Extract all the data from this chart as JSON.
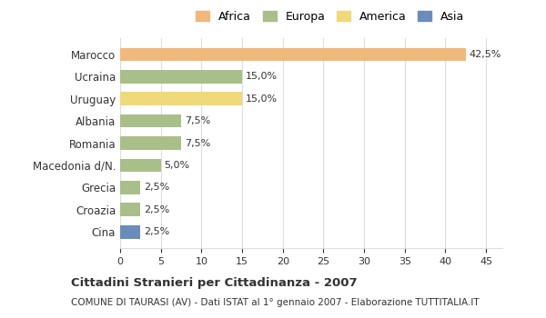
{
  "categories": [
    "Cina",
    "Croazia",
    "Grecia",
    "Macedonia d/N.",
    "Romania",
    "Albania",
    "Uruguay",
    "Ucraina",
    "Marocco"
  ],
  "values": [
    2.5,
    2.5,
    2.5,
    5.0,
    7.5,
    7.5,
    15.0,
    15.0,
    42.5
  ],
  "bar_colors": [
    "#6b8cba",
    "#a8bf8a",
    "#a8bf8a",
    "#a8bf8a",
    "#a8bf8a",
    "#a8bf8a",
    "#f0d97a",
    "#a8bf8a",
    "#f0b87a"
  ],
  "labels": [
    "2,5%",
    "2,5%",
    "2,5%",
    "5,0%",
    "7,5%",
    "7,5%",
    "15,0%",
    "15,0%",
    "42,5%"
  ],
  "xlim": [
    0,
    47
  ],
  "xticks": [
    0,
    5,
    10,
    15,
    20,
    25,
    30,
    35,
    40,
    45
  ],
  "title": "Cittadini Stranieri per Cittadinanza - 2007",
  "subtitle": "COMUNE DI TAURASI (AV) - Dati ISTAT al 1° gennaio 2007 - Elaborazione TUTTITALIA.IT",
  "legend_labels": [
    "Africa",
    "Europa",
    "America",
    "Asia"
  ],
  "legend_colors": [
    "#f0b87a",
    "#a8bf8a",
    "#f0d97a",
    "#6b8cba"
  ],
  "background_color": "#ffffff",
  "bar_height": 0.6,
  "grid_color": "#dddddd",
  "text_color": "#333333"
}
